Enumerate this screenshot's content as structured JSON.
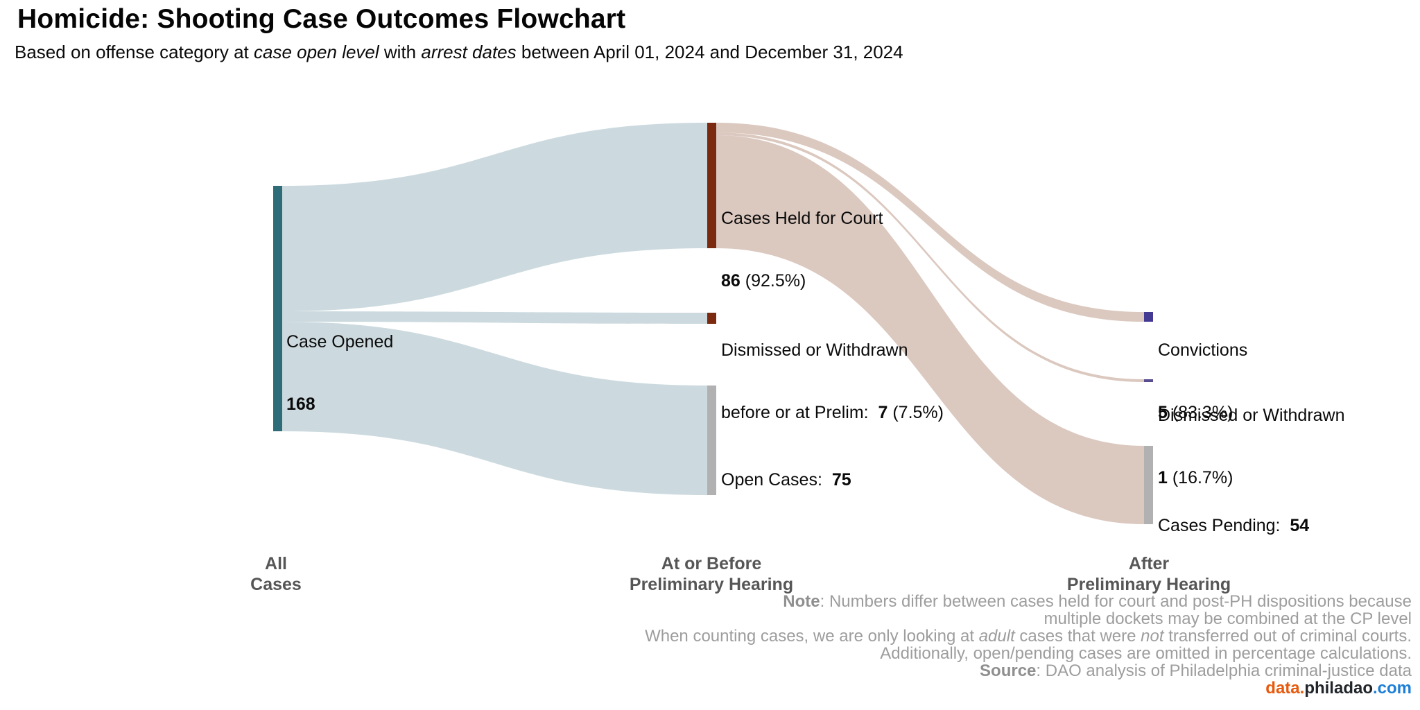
{
  "header": {
    "title": "Homicide: Shooting Case Outcomes Flowchart",
    "subtitle": {
      "pre": "Based on offense category at ",
      "italic1": "case open level",
      "mid": " with ",
      "italic2": "arrest dates",
      "post": " between April 01, 2024 and December 31, 2024"
    }
  },
  "chart_data": {
    "type": "sankey",
    "title": "Homicide: Shooting Case Outcomes Flowchart",
    "stages": [
      "All Cases",
      "At or Before Preliminary Hearing",
      "After Preliminary Hearing"
    ],
    "nodes": [
      {
        "id": "case_opened",
        "stage": 0,
        "label": "Case Opened",
        "value": 168,
        "color": "#2e6c77"
      },
      {
        "id": "held",
        "stage": 1,
        "label": "Cases Held for Court",
        "value": 86,
        "pct": "92.5%",
        "color": "#7c2a0f"
      },
      {
        "id": "dism_prelim",
        "stage": 1,
        "label": "Dismissed or Withdrawn before or at Prelim",
        "value": 7,
        "pct": "7.5%",
        "color": "#7c2a0f"
      },
      {
        "id": "open_cases",
        "stage": 1,
        "label": "Open Cases",
        "value": 75,
        "color": "#b1b1b1"
      },
      {
        "id": "convictions",
        "stage": 2,
        "label": "Convictions",
        "value": 5,
        "pct": "83.3%",
        "color": "#443993"
      },
      {
        "id": "dism_after",
        "stage": 2,
        "label": "Dismissed or Withdrawn",
        "value": 1,
        "pct": "16.7%",
        "color": "#584d91"
      },
      {
        "id": "pending",
        "stage": 2,
        "label": "Cases Pending",
        "value": 54,
        "color": "#b1b1b1"
      }
    ],
    "links": [
      {
        "source": "case_opened",
        "target": "held",
        "value": 86,
        "color": "#c7d6db"
      },
      {
        "source": "case_opened",
        "target": "dism_prelim",
        "value": 7,
        "color": "#c7d6db"
      },
      {
        "source": "case_opened",
        "target": "open_cases",
        "value": 75,
        "color": "#c7d6db"
      },
      {
        "source": "held",
        "target": "convictions",
        "value": 5,
        "color": "#d3bcb1"
      },
      {
        "source": "held",
        "target": "dism_after",
        "value": 1,
        "color": "#d3bcb1"
      },
      {
        "source": "held",
        "target": "pending",
        "value": 54,
        "color": "#d3bcb1"
      }
    ]
  },
  "labels": {
    "case_opened": {
      "line1": "Case Opened",
      "value": "168"
    },
    "held": {
      "line1": "Cases Held for Court",
      "value": "86",
      "pct": " (92.5%)"
    },
    "dism_prelim": {
      "line1": "Dismissed or Withdrawn",
      "line2_pre": "before or at Prelim:  ",
      "value": "7",
      "pct": " (7.5%)"
    },
    "open_cases": {
      "pre": "Open Cases:  ",
      "value": "75"
    },
    "convictions": {
      "line1": "Convictions",
      "value": "5",
      "pct": " (83.3%)"
    },
    "dism_after": {
      "line1": "Dismissed or Withdrawn",
      "value": "1",
      "pct": " (16.7%)"
    },
    "pending": {
      "pre": "Cases Pending:  ",
      "value": "54"
    }
  },
  "axis": {
    "s1": {
      "line1": "All",
      "line2": "Cases"
    },
    "s2": {
      "line1": "At or Before",
      "line2": "Preliminary Hearing"
    },
    "s3": {
      "line1": "After",
      "line2": "Preliminary Hearing"
    }
  },
  "notes": {
    "l1_bold": "Note",
    "l1_rest": ": Numbers differ between cases held for court and post-PH dispositions because",
    "l2": "multiple dockets may be combined at the CP level",
    "l3_pre": "When counting cases, we are only looking at ",
    "l3_it1": "adult",
    "l3_mid": " cases that were ",
    "l3_it2": "not",
    "l3_post": " transferred out of criminal courts.",
    "l4": "Additionally, open/pending cases are omitted in percentage calculations.",
    "l5_bold": "Source",
    "l5_rest": ": DAO analysis of Philadelphia criminal-justice data"
  },
  "brand": {
    "p1": "data.",
    "p2": "philadao",
    "p3": ".com"
  }
}
